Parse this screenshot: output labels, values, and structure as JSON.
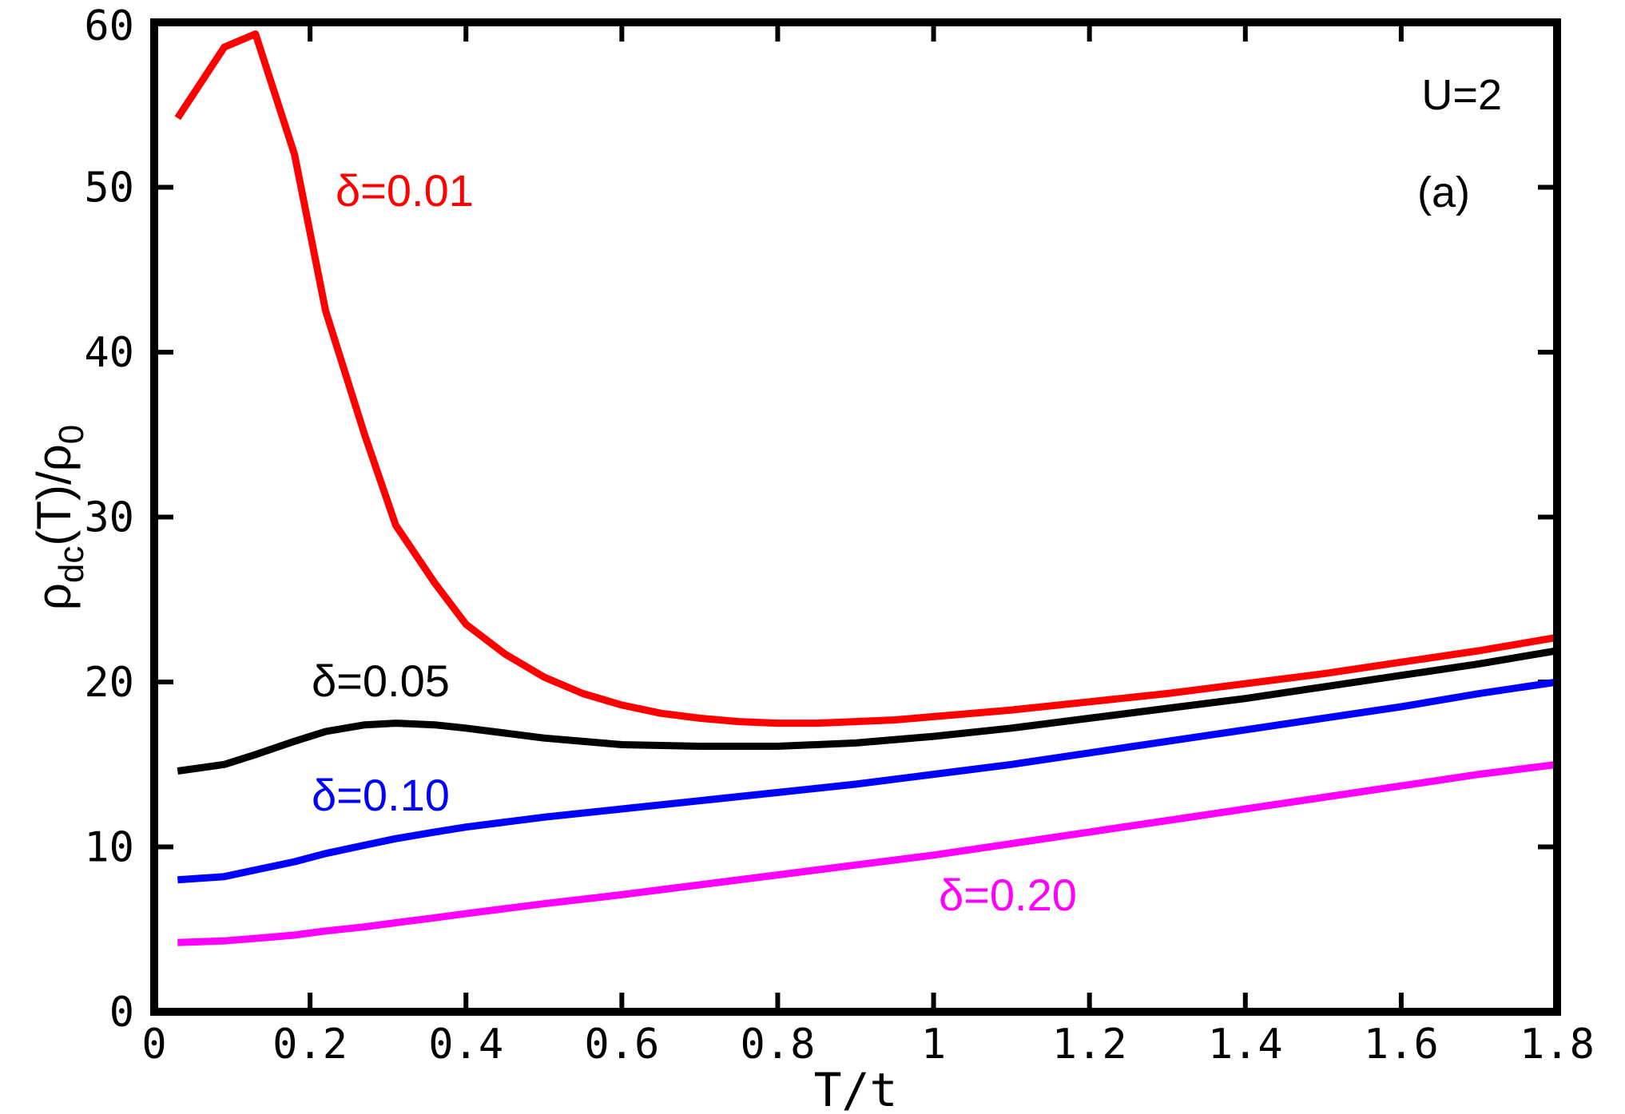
{
  "chart_data": {
    "type": "line",
    "xlabel": "T/t",
    "ylabel": {
      "main": "ρ",
      "sub1": "dc",
      "mid": "(T)/ρ",
      "sub2": "0"
    },
    "xlim": [
      0,
      1.8
    ],
    "ylim": [
      0,
      60
    ],
    "x_ticks": [
      0,
      0.2,
      0.4,
      0.6,
      0.8,
      1,
      1.2,
      1.4,
      1.6,
      1.8
    ],
    "x_tick_labels": [
      "0",
      "0.2",
      "0.4",
      "0.6",
      "0.8",
      "1",
      "1.2",
      "1.4",
      "1.6",
      "1.8"
    ],
    "y_ticks": [
      0,
      10,
      20,
      30,
      40,
      50,
      60
    ],
    "y_tick_labels": [
      "0",
      "10",
      "20",
      "30",
      "40",
      "50",
      "60"
    ],
    "grid": false,
    "annotations": [
      {
        "text": "U=2",
        "color": "#000000"
      },
      {
        "text": "(a)",
        "color": "#000000"
      }
    ],
    "series": [
      {
        "name": "δ=0.01",
        "color": "#ff0000",
        "x": [
          0.03,
          0.09,
          0.13,
          0.18,
          0.22,
          0.27,
          0.31,
          0.36,
          0.4,
          0.45,
          0.5,
          0.55,
          0.6,
          0.65,
          0.7,
          0.75,
          0.8,
          0.85,
          0.9,
          0.95,
          1.0,
          1.1,
          1.2,
          1.3,
          1.4,
          1.5,
          1.6,
          1.7,
          1.8
        ],
        "y": [
          54.2,
          58.5,
          59.3,
          52.0,
          42.5,
          35.0,
          29.5,
          26.0,
          23.5,
          21.7,
          20.3,
          19.3,
          18.6,
          18.1,
          17.8,
          17.6,
          17.5,
          17.5,
          17.6,
          17.7,
          17.9,
          18.3,
          18.8,
          19.3,
          19.9,
          20.5,
          21.2,
          21.9,
          22.7
        ]
      },
      {
        "name": "δ=0.05",
        "color": "#000000",
        "x": [
          0.03,
          0.09,
          0.13,
          0.18,
          0.22,
          0.27,
          0.31,
          0.36,
          0.4,
          0.45,
          0.5,
          0.6,
          0.7,
          0.8,
          0.9,
          1.0,
          1.1,
          1.2,
          1.3,
          1.4,
          1.5,
          1.6,
          1.7,
          1.8
        ],
        "y": [
          14.6,
          15.0,
          15.6,
          16.4,
          17.0,
          17.4,
          17.5,
          17.4,
          17.2,
          16.9,
          16.6,
          16.2,
          16.1,
          16.1,
          16.3,
          16.7,
          17.2,
          17.8,
          18.4,
          19.0,
          19.7,
          20.4,
          21.1,
          21.9
        ]
      },
      {
        "name": "δ=0.10",
        "color": "#0000ff",
        "x": [
          0.03,
          0.09,
          0.13,
          0.18,
          0.22,
          0.27,
          0.31,
          0.36,
          0.4,
          0.45,
          0.5,
          0.6,
          0.7,
          0.8,
          0.9,
          1.0,
          1.1,
          1.2,
          1.3,
          1.4,
          1.5,
          1.6,
          1.7,
          1.8
        ],
        "y": [
          8.0,
          8.2,
          8.6,
          9.1,
          9.6,
          10.1,
          10.5,
          10.9,
          11.2,
          11.5,
          11.8,
          12.3,
          12.8,
          13.3,
          13.8,
          14.4,
          15.0,
          15.7,
          16.4,
          17.1,
          17.8,
          18.5,
          19.3,
          20.0
        ]
      },
      {
        "name": "δ=0.20",
        "color": "#ff00ff",
        "x": [
          0.03,
          0.09,
          0.13,
          0.18,
          0.22,
          0.27,
          0.31,
          0.36,
          0.4,
          0.45,
          0.5,
          0.6,
          0.7,
          0.8,
          0.9,
          1.0,
          1.1,
          1.2,
          1.3,
          1.4,
          1.5,
          1.6,
          1.7,
          1.8
        ],
        "y": [
          4.2,
          4.3,
          4.45,
          4.65,
          4.9,
          5.15,
          5.4,
          5.7,
          5.95,
          6.25,
          6.55,
          7.1,
          7.7,
          8.3,
          8.9,
          9.5,
          10.2,
          10.9,
          11.6,
          12.3,
          13.0,
          13.7,
          14.4,
          15.0
        ]
      }
    ]
  }
}
